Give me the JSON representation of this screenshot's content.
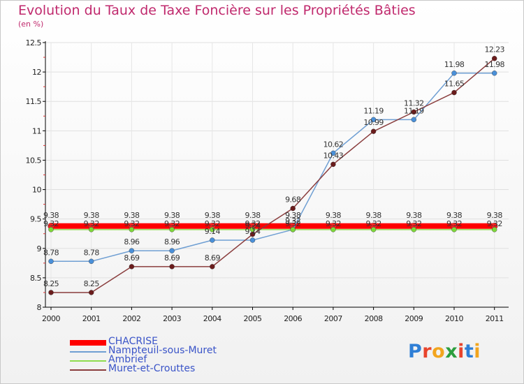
{
  "header": {
    "title": "Evolution du Taux de Taxe Foncière sur les Propriétés Bâties",
    "unit": "(en %)"
  },
  "logo": {
    "text": "Proxiti",
    "colors": [
      "#2f7fd6",
      "#e8442c",
      "#f2a51e",
      "#2c9e3e",
      "#e8442c",
      "#2f7fd6",
      "#f2a51e"
    ]
  },
  "chart_data": {
    "type": "line",
    "title": "Evolution du Taux de Taxe Foncière sur les Propriétés Bâties",
    "ylabel": "(en %)",
    "xlabel": "",
    "x": [
      "2000",
      "2001",
      "2002",
      "2003",
      "2004",
      "2005",
      "2006",
      "2007",
      "2008",
      "2009",
      "2010",
      "2011"
    ],
    "ylim": [
      8,
      12.5
    ],
    "yticks": [
      "8",
      "8.5",
      "9",
      "9.5",
      "10",
      "10.5",
      "11",
      "11.5",
      "12",
      "12.5"
    ],
    "series": [
      {
        "name": "CHACRISE",
        "color": "#ff0000",
        "values": [
          9.38,
          9.38,
          9.38,
          9.38,
          9.38,
          9.38,
          9.38,
          9.38,
          9.38,
          9.38,
          9.38,
          9.38
        ],
        "labels": [
          "9.38",
          "9.38",
          "9.38",
          "9.38",
          "9.38",
          "9.38",
          "9.38",
          "9.38",
          "9.38",
          "9.38",
          "9.38",
          "9.38"
        ]
      },
      {
        "name": "Nampteuil-sous-Muret",
        "color": "#6f9fd3",
        "values": [
          8.78,
          8.78,
          8.96,
          8.96,
          9.14,
          9.14,
          9.32,
          10.62,
          11.19,
          11.19,
          11.98,
          11.98
        ],
        "labels": [
          "8.78",
          "8.78",
          "8.96",
          "8.96",
          "9.14",
          "9.14",
          "9.32",
          "10.62",
          "11.19",
          "11.19",
          "11.98",
          "11.98"
        ]
      },
      {
        "name": "Ambrief",
        "color": "#8fdc4f",
        "values": [
          9.32,
          9.32,
          9.32,
          9.32,
          9.32,
          9.32,
          9.32,
          9.32,
          9.32,
          9.32,
          9.32,
          9.32
        ],
        "labels": [
          "9.32",
          "9.32",
          "9.32",
          "9.32",
          "9.32",
          "9.32",
          "9.32",
          "9.32",
          "9.32",
          "9.32",
          "9.32",
          "9.32"
        ]
      },
      {
        "name": "Muret-et-Crouttes",
        "color": "#8a3d3d",
        "values": [
          8.25,
          8.25,
          8.69,
          8.69,
          8.69,
          9.24,
          9.68,
          10.43,
          10.99,
          11.32,
          11.65,
          12.23
        ],
        "labels": [
          "8.25",
          "8.25",
          "8.69",
          "8.69",
          "8.69",
          "9.24",
          "9.68",
          "10.43",
          "10.99",
          "11.32",
          "11.65",
          "12.23"
        ]
      }
    ],
    "legend": [
      "CHACRISE",
      "Nampteuil-sous-Muret",
      "Ambrief",
      "Muret-et-Crouttes"
    ]
  }
}
